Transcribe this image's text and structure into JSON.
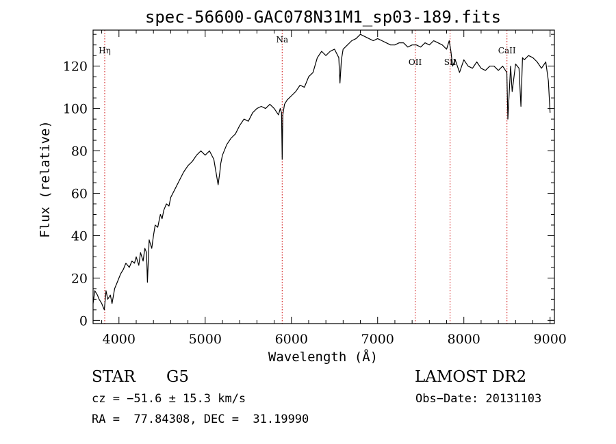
{
  "chart_data": {
    "type": "line",
    "title": "spec-56600-GAC078N31M1_sp03-189.fits",
    "xlabel": "Wavelength (Å)",
    "ylabel": "Flux (relative)",
    "xlim": [
      3700,
      9050
    ],
    "ylim": [
      -1.5,
      137
    ],
    "x_ticks": [
      4000,
      5000,
      6000,
      7000,
      8000,
      9000
    ],
    "y_ticks": [
      0,
      20,
      40,
      60,
      80,
      100,
      120
    ],
    "grid": false,
    "line_color": "#000000",
    "marker_color": "#cc0000",
    "spectral_lines": [
      {
        "label": "Hη",
        "x": 3835
      },
      {
        "label": "Na",
        "x": 5893
      },
      {
        "label": "OII",
        "x": 7435
      },
      {
        "label": "SII",
        "x": 7840
      },
      {
        "label": "CaII",
        "x": 8500
      }
    ],
    "series": [
      {
        "x": [
          3700,
          3720,
          3750,
          3770,
          3800,
          3830,
          3850,
          3870,
          3900,
          3920,
          3950,
          3980,
          4000,
          4020,
          4050,
          4080,
          4100,
          4120,
          4150,
          4180,
          4200,
          4230,
          4250,
          4280,
          4300,
          4320,
          4330,
          4350,
          4380,
          4400,
          4420,
          4450,
          4480,
          4500,
          4520,
          4550,
          4580,
          4600,
          4650,
          4700,
          4750,
          4800,
          4850,
          4900,
          4950,
          5000,
          5050,
          5100,
          5150,
          5170,
          5180,
          5200,
          5250,
          5300,
          5350,
          5400,
          5450,
          5500,
          5550,
          5600,
          5650,
          5700,
          5750,
          5800,
          5850,
          5870,
          5885,
          5893,
          5900,
          5920,
          5950,
          6000,
          6050,
          6100,
          6150,
          6200,
          6250,
          6300,
          6350,
          6400,
          6450,
          6500,
          6550,
          6563,
          6580,
          6600,
          6650,
          6700,
          6750,
          6800,
          6850,
          6900,
          6950,
          7000,
          7050,
          7100,
          7150,
          7200,
          7250,
          7300,
          7350,
          7400,
          7450,
          7500,
          7550,
          7600,
          7650,
          7700,
          7750,
          7800,
          7830,
          7850,
          7870,
          7900,
          7950,
          8000,
          8050,
          8100,
          8150,
          8200,
          8250,
          8300,
          8350,
          8400,
          8450,
          8498,
          8510,
          8542,
          8560,
          8600,
          8640,
          8662,
          8680,
          8700,
          8750,
          8800,
          8850,
          8900,
          8950,
          8980,
          9000
        ],
        "y": [
          8,
          14,
          12,
          10,
          8,
          5,
          14,
          10,
          12,
          8,
          15,
          18,
          20,
          22,
          24,
          27,
          26,
          25,
          28,
          27,
          30,
          26,
          32,
          28,
          34,
          32,
          18,
          38,
          34,
          40,
          45,
          44,
          50,
          48,
          52,
          55,
          54,
          58,
          62,
          66,
          70,
          73,
          75,
          78,
          80,
          78,
          80,
          76,
          64,
          70,
          74,
          78,
          83,
          86,
          88,
          92,
          95,
          94,
          98,
          100,
          101,
          100,
          102,
          100,
          97,
          100,
          98,
          76,
          97,
          102,
          104,
          106,
          108,
          111,
          110,
          115,
          117,
          124,
          127,
          125,
          127,
          128,
          124,
          112,
          123,
          128,
          130,
          132,
          133,
          135,
          134,
          133,
          132,
          133,
          132,
          131,
          130,
          130,
          131,
          131,
          129,
          130,
          130,
          129,
          131,
          130,
          132,
          131,
          130,
          128,
          132,
          127,
          120,
          123,
          117,
          123,
          120,
          119,
          122,
          119,
          118,
          120,
          120,
          118,
          120,
          117,
          95,
          120,
          108,
          121,
          119,
          101,
          124,
          123,
          125,
          124,
          122,
          119,
          122,
          113,
          98
        ]
      }
    ]
  },
  "footer": {
    "object_class": "STAR",
    "subclass": "G5",
    "survey": "LAMOST DR2",
    "velocity": "cz = −51.6 ± 15.3 km/s",
    "obs_date": "Obs−Date: 20131103",
    "coords": "RA =  77.84308, DEC =  31.19990"
  }
}
